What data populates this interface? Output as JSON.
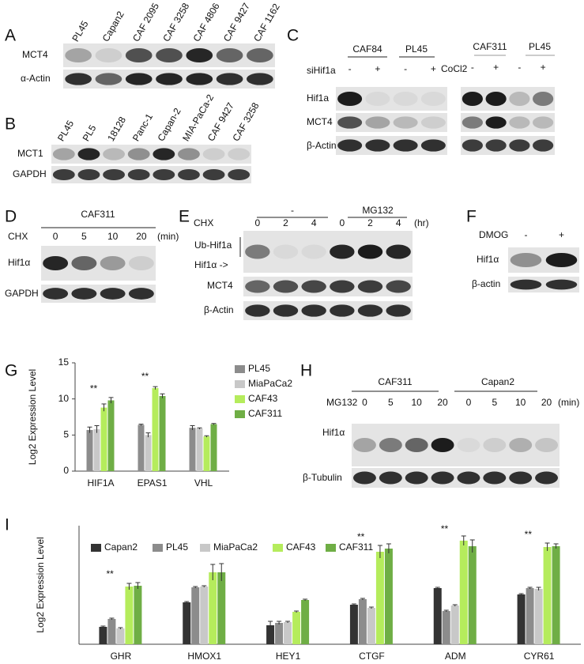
{
  "figure": {
    "panels": {
      "A": {
        "letter": "A",
        "lanes": [
          "PL45",
          "Capan2",
          "CAF 2095",
          "CAF 3258",
          "CAF 4806",
          "CAF 9427",
          "CAF 1162"
        ],
        "rows": [
          "MCT4",
          "α-Actin"
        ]
      },
      "B": {
        "letter": "B",
        "lanes": [
          "PL45",
          "PL5",
          "18128",
          "Panc-1",
          "Capan-2",
          "MIA-PaCa-2",
          "CAF 9427",
          "CAF 3258"
        ],
        "rows": [
          "MCT1",
          "GAPDH"
        ]
      },
      "C": {
        "letter": "C",
        "left": {
          "groups": [
            "CAF84",
            "PL45"
          ],
          "treatment": "siHif1a",
          "signs": [
            "-",
            "+",
            "-",
            "+"
          ]
        },
        "right": {
          "groups": [
            "CAF311",
            "PL45"
          ],
          "treatment": "CoCl2",
          "signs": [
            "-",
            "+",
            "-",
            "+"
          ]
        },
        "rows": [
          "Hif1a",
          "MCT4",
          "β-Actin"
        ]
      },
      "D": {
        "letter": "D",
        "group": "CAF311",
        "treatment": "CHX",
        "lanes": [
          "0",
          "5",
          "10",
          "20"
        ],
        "unit": "(min)",
        "rows": [
          "Hif1α",
          "GAPDH"
        ]
      },
      "E": {
        "letter": "E",
        "treatment": "CHX",
        "groups": [
          "-",
          "MG132"
        ],
        "lanes": [
          "0",
          "2",
          "4",
          "0",
          "2",
          "4"
        ],
        "unit": "(hr)",
        "rows": [
          "Ub-Hif1a",
          "Hif1α ->",
          "MCT4",
          "β-Actin"
        ]
      },
      "F": {
        "letter": "F",
        "treatment": "DMOG",
        "lanes": [
          "-",
          "+"
        ],
        "rows": [
          "Hif1α",
          "β-actin"
        ]
      },
      "H": {
        "letter": "H",
        "groups": [
          "CAF311",
          "Capan2"
        ],
        "treatment": "MG132",
        "lanes": [
          "0",
          "5",
          "10",
          "20",
          "0",
          "5",
          "10",
          "20"
        ],
        "unit": "(min)",
        "rows": [
          "Hif1α",
          "β-Tubulin"
        ]
      }
    }
  },
  "chart_data": [
    {
      "type": "bar",
      "panel": "G",
      "ylabel": "Log2 Expression Level",
      "categories": [
        "HIF1A",
        "EPAS1",
        "VHL"
      ],
      "series": [
        {
          "name": "PL45",
          "color": "#8c8c8c",
          "values": [
            5.7,
            6.4,
            6.0
          ],
          "errors": [
            0.4,
            0.1,
            0.3
          ]
        },
        {
          "name": "MiaPaCa2",
          "color": "#c8c8c8",
          "values": [
            5.8,
            5.0,
            5.9
          ],
          "errors": [
            0.5,
            0.3,
            0.1
          ]
        },
        {
          "name": "CAF43",
          "color": "#b5ec5c",
          "values": [
            8.8,
            11.5,
            4.8
          ],
          "errors": [
            0.5,
            0.2,
            0.1
          ]
        },
        {
          "name": "CAF311",
          "color": "#6fae45",
          "values": [
            9.8,
            10.4,
            6.5
          ],
          "errors": [
            0.4,
            0.3,
            0.1
          ]
        }
      ],
      "ylim": [
        0,
        15
      ],
      "yticks": [
        0,
        5,
        10,
        15
      ],
      "legend": "right",
      "annotations": [
        {
          "text": "**",
          "category": "HIF1A"
        },
        {
          "text": "**",
          "category": "EPAS1"
        }
      ]
    },
    {
      "type": "bar",
      "panel": "I",
      "ylabel": "Log2 Expression Level",
      "categories": [
        "GHR",
        "HMOX1",
        "HEY1",
        "CTGF",
        "ADM",
        "CYR61"
      ],
      "series": [
        {
          "name": "Capan2",
          "color": "#333333",
          "values": [
            2.2,
            5.3,
            2.4,
            5.0,
            7.1,
            6.3
          ],
          "errors": [
            0.1,
            0.1,
            0.5,
            0.1,
            0.1,
            0.1
          ]
        },
        {
          "name": "PL45",
          "color": "#8c8c8c",
          "values": [
            3.2,
            7.2,
            2.7,
            5.7,
            4.2,
            7.1
          ],
          "errors": [
            0.1,
            0.1,
            0.2,
            0.1,
            0.1,
            0.1
          ]
        },
        {
          "name": "MiaPaCa2",
          "color": "#c8c8c8",
          "values": [
            2.0,
            7.3,
            2.8,
            4.6,
            4.9,
            7.0
          ],
          "errors": [
            0.1,
            0.1,
            0.1,
            0.1,
            0.1,
            0.2
          ]
        },
        {
          "name": "CAF43",
          "color": "#b5ec5c",
          "values": [
            7.3,
            9.1,
            4.1,
            11.7,
            13.1,
            12.3
          ],
          "errors": [
            0.4,
            1.0,
            0.1,
            0.8,
            0.6,
            0.5
          ]
        },
        {
          "name": "CAF311",
          "color": "#6fae45",
          "values": [
            7.4,
            9.1,
            5.6,
            12.1,
            12.4,
            12.4
          ],
          "errors": [
            0.4,
            1.1,
            0.1,
            0.6,
            0.8,
            0.3
          ]
        }
      ],
      "ylim": [
        0,
        15
      ],
      "legend": "top",
      "annotations": [
        {
          "text": "**",
          "category": "GHR"
        },
        {
          "text": "**",
          "category": "CTGF"
        },
        {
          "text": "**",
          "category": "ADM"
        },
        {
          "text": "**",
          "category": "CYR61"
        }
      ]
    }
  ]
}
